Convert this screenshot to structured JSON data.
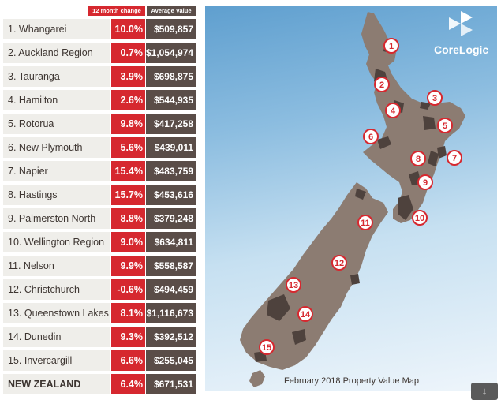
{
  "table": {
    "headers": {
      "change": "12 month change",
      "value": "Average Value"
    },
    "rows": [
      {
        "name": "1. Whangarei",
        "change": "10.0%",
        "value": "$509,857"
      },
      {
        "name": "2. Auckland Region",
        "change": "0.7%",
        "value": "$1,054,974"
      },
      {
        "name": "3. Tauranga",
        "change": "3.9%",
        "value": "$698,875"
      },
      {
        "name": "4. Hamilton",
        "change": "2.6%",
        "value": "$544,935"
      },
      {
        "name": "5. Rotorua",
        "change": "9.8%",
        "value": "$417,258"
      },
      {
        "name": "6. New Plymouth",
        "change": "5.6%",
        "value": "$439,011"
      },
      {
        "name": "7. Napier",
        "change": "15.4%",
        "value": "$483,759"
      },
      {
        "name": "8. Hastings",
        "change": "15.7%",
        "value": "$453,616"
      },
      {
        "name": "9. Palmerston North",
        "change": "8.8%",
        "value": "$379,248"
      },
      {
        "name": "10. Wellington Region",
        "change": "9.0%",
        "value": "$634,811"
      },
      {
        "name": "11. Nelson",
        "change": "9.9%",
        "value": "$558,587"
      },
      {
        "name": "12. Christchurch",
        "change": "-0.6%",
        "value": "$494,459"
      },
      {
        "name": "13. Queenstown Lakes",
        "change": "8.1%",
        "value": "$1,116,673"
      },
      {
        "name": "14. Dunedin",
        "change": "9.3%",
        "value": "$392,512"
      },
      {
        "name": "15. Invercargill",
        "change": "6.6%",
        "value": "$255,045"
      }
    ],
    "total": {
      "name": "NEW ZEALAND",
      "change": "6.4%",
      "value": "$671,531"
    }
  },
  "map": {
    "caption": "February 2018 Property Value Map",
    "brand": "CoreLogic",
    "markers": [
      "1",
      "2",
      "3",
      "4",
      "5",
      "6",
      "7",
      "8",
      "9",
      "10",
      "11",
      "12",
      "13",
      "14",
      "15"
    ],
    "colors": {
      "land": "#8c7c72",
      "highlight": "#4e423d",
      "marker_border": "#d6282f"
    }
  },
  "icons": {
    "download": "↓"
  },
  "colors": {
    "change_bg": "#d6282f",
    "value_bg": "#5a4d48",
    "name_bg": "#efeeea"
  }
}
